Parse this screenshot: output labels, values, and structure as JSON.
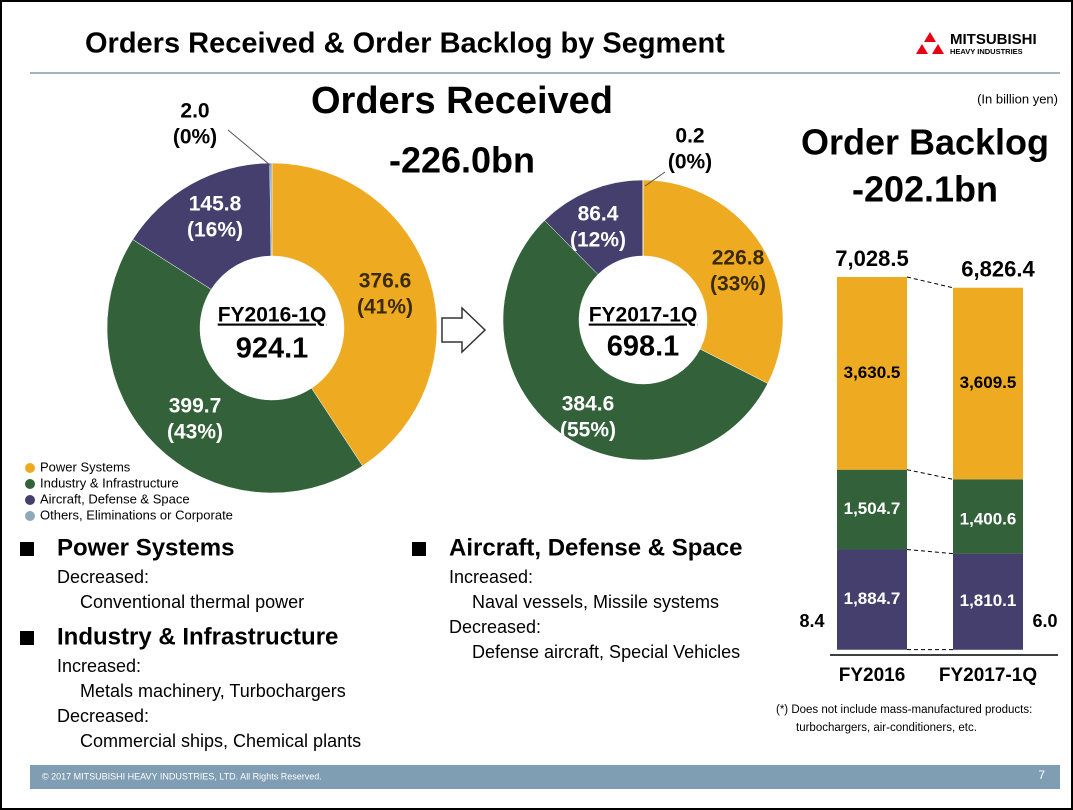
{
  "header": {
    "title": "Orders Received & Order Backlog by Segment",
    "logo": "MITSUBISHI",
    "logo_sub": "HEAVY INDUSTRIES"
  },
  "orders_title": "Orders Received",
  "orders_change": "-226.0bn",
  "unit_note": "(In billion yen)",
  "backlog_title": "Order Backlog",
  "backlog_change": "-202.1bn",
  "chart_data": [
    {
      "type": "donut",
      "center_label": "FY2016-1Q",
      "total_label": "924.1",
      "categories": [
        "Power Systems",
        "Industry & Infrastructure",
        "Aircraft, Defense & Space",
        "Others, Eliminations or Corporate"
      ],
      "colors": [
        "#eeab22",
        "#32613a",
        "#453f6e",
        "#8fa9ba"
      ],
      "values": [
        376.6,
        399.7,
        145.8,
        2.0
      ],
      "value_labels": [
        "376.6",
        "399.7",
        "145.8",
        "2.0"
      ],
      "percents": [
        41,
        43,
        16,
        0
      ],
      "percent_labels": [
        "(41%)",
        "(43%)",
        "(16%)",
        "(0%)"
      ]
    },
    {
      "type": "donut",
      "center_label": "FY2017-1Q",
      "total_label": "698.1",
      "colors": [
        "#eeab22",
        "#32613a",
        "#453f6e",
        "#8fa9ba"
      ],
      "values": [
        226.8,
        384.6,
        86.4,
        0.2
      ],
      "value_labels": [
        "226.8",
        "384.6",
        "86.4",
        "0.2"
      ],
      "percents": [
        33,
        55,
        12,
        0
      ],
      "percent_labels": [
        "(33%)",
        "(55%)",
        "(12%)",
        "(0%)"
      ]
    },
    {
      "type": "stacked_bar",
      "categories": [
        "FY2016",
        "FY2017-1Q"
      ],
      "totals": [
        7028.5,
        6826.4
      ],
      "total_labels": [
        "7,028.5",
        "6,826.4"
      ],
      "series": [
        {
          "color": "#eeab22",
          "values": [
            3630.5,
            3609.5
          ],
          "value_labels": [
            "3,630.5",
            "3,609.5"
          ]
        },
        {
          "color": "#32613a",
          "values": [
            1504.7,
            1400.6
          ],
          "value_labels": [
            "1,504.7",
            "1,400.6"
          ]
        },
        {
          "color": "#453f6e",
          "values": [
            1884.7,
            1810.1
          ],
          "value_labels": [
            "1,884.7",
            "1,810.1"
          ]
        },
        {
          "color": "#8fa9ba",
          "values": [
            8.4,
            6.0
          ],
          "value_labels": [
            "8.4",
            "6.0"
          ]
        }
      ]
    }
  ],
  "segments": [
    {
      "name": "Power Systems",
      "lines": [
        {
          "label": "Decreased:",
          "items": "Conventional thermal power"
        }
      ]
    },
    {
      "name": "Industry & Infrastructure",
      "lines": [
        {
          "label": "Increased:",
          "items": "Metals machinery, Turbochargers"
        },
        {
          "label": "Decreased:",
          "items": "Commercial ships, Chemical plants"
        }
      ]
    },
    {
      "name": "Aircraft, Defense & Space",
      "lines": [
        {
          "label": "Increased:",
          "items": "Naval vessels, Missile systems"
        },
        {
          "label": "Decreased:",
          "items": "Defense aircraft, Special Vehicles"
        }
      ]
    }
  ],
  "note": [
    "(*) Does not include mass-manufactured products:",
    "turbochargers, air-conditioners, etc."
  ],
  "footer": {
    "copyright": "© 2017 MITSUBISHI HEAVY INDUSTRIES, LTD.  All Rights Reserved.",
    "page": "7"
  }
}
